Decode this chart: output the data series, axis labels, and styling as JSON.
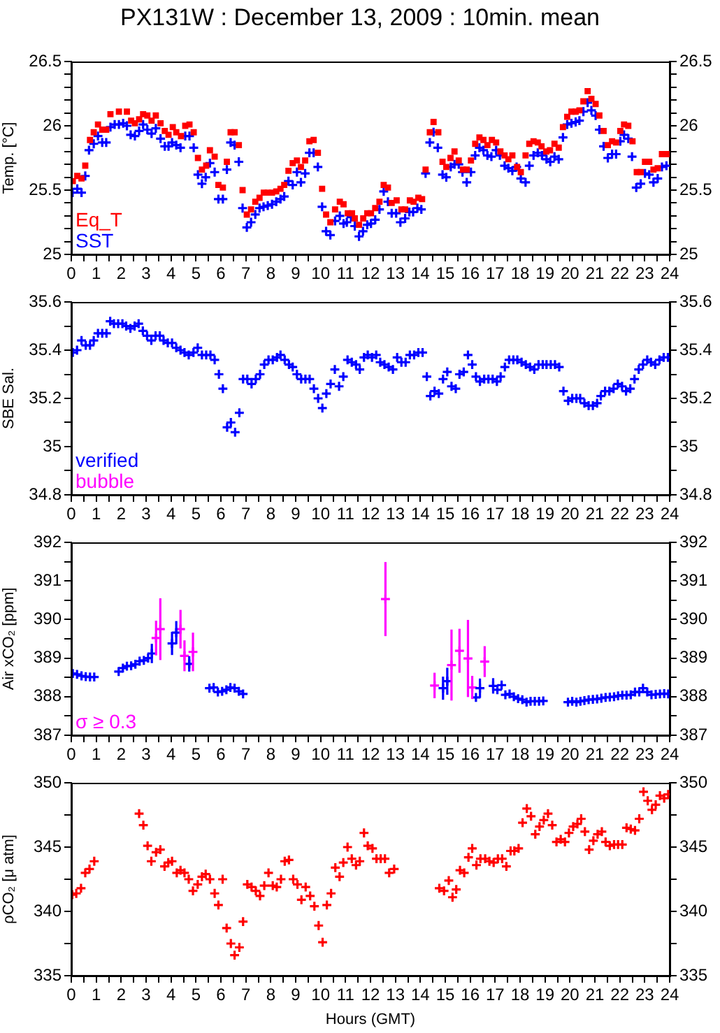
{
  "chart_data": [
    {
      "type": "scatter",
      "title": "PX131W : December 13, 2009 : 10min. mean",
      "ylabel": "Temp. [°C]",
      "marker": "cross",
      "legend": "bottom left",
      "xlim": [
        0,
        24
      ],
      "xticks": [
        0,
        {
          "value": 0.5,
          "label": null
        },
        1,
        {
          "value": 1.5,
          "label": null
        },
        2,
        {
          "value": 2.5,
          "label": null
        },
        3,
        {
          "value": 3.5,
          "label": null
        },
        4,
        {
          "value": 4.5,
          "label": null
        },
        5,
        {
          "value": 5.5,
          "label": null
        },
        6,
        {
          "value": 6.5,
          "label": null
        },
        7,
        {
          "value": 7.5,
          "label": null
        },
        8,
        {
          "value": 8.5,
          "label": null
        },
        9,
        {
          "value": 9.5,
          "label": null
        },
        10,
        {
          "value": 10.5,
          "label": null
        },
        11,
        {
          "value": 11.5,
          "label": null
        },
        12,
        {
          "value": 12.5,
          "label": null
        },
        13,
        {
          "value": 13.5,
          "label": null
        },
        14,
        {
          "value": 14.5,
          "label": null
        },
        15,
        {
          "value": 15.5,
          "label": null
        },
        16,
        {
          "value": 16.5,
          "label": null
        },
        17,
        {
          "value": 17.5,
          "label": null
        },
        18,
        {
          "value": 18.5,
          "label": null
        },
        19,
        {
          "value": 19.5,
          "label": null
        },
        20,
        {
          "value": 20.5,
          "label": null
        },
        21,
        {
          "value": 21.5,
          "label": null
        },
        22,
        {
          "value": 22.5,
          "label": null
        },
        23,
        {
          "value": 23.5,
          "label": null
        },
        24
      ],
      "ylim": [
        25,
        26.5
      ],
      "yticks": [
        25,
        {
          "value": 25.1,
          "label": null
        },
        {
          "value": 25.2,
          "label": null
        },
        {
          "value": 25.3,
          "label": null
        },
        {
          "value": 25.4,
          "label": null
        },
        25.5,
        {
          "value": 25.6,
          "label": null
        },
        {
          "value": 25.7,
          "label": null
        },
        {
          "value": 25.8,
          "label": null
        },
        {
          "value": 25.9,
          "label": null
        },
        26,
        {
          "value": 26.1,
          "label": null
        },
        {
          "value": 26.2,
          "label": null
        },
        {
          "value": 26.3,
          "label": null
        },
        {
          "value": 26.4,
          "label": null
        },
        26.5
      ],
      "y2lim": [
        25,
        26.5
      ],
      "y2ticks": [
        25,
        {
          "value": 25.1,
          "label": null
        },
        {
          "value": 25.2,
          "label": null
        },
        {
          "value": 25.3,
          "label": null
        },
        {
          "value": 25.4,
          "label": null
        },
        25.5,
        {
          "value": 25.6,
          "label": null
        },
        {
          "value": 25.7,
          "label": null
        },
        {
          "value": 25.8,
          "label": null
        },
        {
          "value": 25.9,
          "label": null
        },
        26,
        {
          "value": 26.1,
          "label": null
        },
        {
          "value": 26.2,
          "label": null
        },
        {
          "value": 26.3,
          "label": null
        },
        {
          "value": 26.4,
          "label": null
        },
        26.5
      ],
      "series": [
        {
          "name": "Eq_T",
          "color": "#ff0000",
          "marker": "square",
          "x": [
            0.06,
            0.24,
            0.41,
            0.56,
            0.75,
            0.9,
            1.07,
            1.24,
            1.4,
            1.57,
            1.91,
            2.23,
            2.4,
            2.55,
            2.72,
            2.88,
            3.05,
            3.22,
            3.39,
            3.58,
            3.75,
            3.9,
            4.07,
            4.21,
            4.4,
            4.57,
            4.74,
            4.91,
            5.08,
            5.24,
            5.41,
            5.56,
            5.75,
            5.9,
            6.08,
            6.24,
            6.39,
            6.55,
            6.72,
            6.87,
            7.04,
            7.21,
            7.38,
            7.55,
            7.72,
            7.88,
            8.05,
            8.22,
            8.39,
            8.54,
            8.71,
            8.88,
            9.05,
            9.21,
            9.38,
            9.55,
            9.72,
            9.89,
            10.06,
            10.22,
            10.39,
            10.58,
            10.77,
            10.92,
            11.09,
            11.26,
            11.37,
            11.54,
            11.71,
            11.87,
            12.02,
            12.19,
            12.36,
            12.53,
            12.7,
            12.85,
            13.05,
            13.24,
            13.39,
            13.58,
            13.73,
            13.92,
            14.07,
            14.21,
            14.38,
            14.53,
            14.72,
            14.89,
            15.04,
            15.21,
            15.37,
            15.54,
            15.71,
            15.86,
            16.03,
            16.2,
            16.37,
            16.53,
            16.69,
            16.87,
            17.04,
            17.21,
            17.38,
            17.53,
            17.69,
            17.88,
            18.03,
            18.22,
            18.37,
            18.54,
            18.71,
            18.86,
            19.05,
            19.2,
            19.38,
            19.55,
            19.72,
            19.89,
            20.06,
            20.23,
            20.38,
            20.54,
            20.71,
            20.86,
            21.03,
            21.18,
            21.35,
            21.52,
            21.69,
            21.85,
            22.02,
            22.17,
            22.34,
            22.51,
            22.68,
            22.84,
            23.01,
            23.18,
            23.35,
            23.52,
            23.69,
            23.87
          ],
          "values": [
            25.57,
            25.61,
            25.59,
            25.69,
            25.89,
            25.95,
            26.01,
            25.97,
            25.97,
            26.09,
            26.11,
            26.11,
            26.04,
            26.02,
            26.05,
            26.09,
            26.08,
            26.04,
            26.08,
            26.02,
            25.96,
            25.93,
            25.99,
            25.95,
            25.92,
            26.0,
            26.01,
            25.95,
            25.75,
            25.66,
            25.69,
            25.81,
            25.76,
            25.54,
            25.52,
            25.72,
            25.95,
            25.95,
            25.85,
            25.5,
            25.31,
            25.35,
            25.41,
            25.44,
            25.48,
            25.48,
            25.48,
            25.49,
            25.51,
            25.54,
            25.65,
            25.71,
            25.73,
            25.68,
            25.73,
            25.88,
            25.89,
            25.79,
            25.51,
            25.31,
            25.25,
            25.35,
            25.41,
            25.39,
            25.32,
            25.32,
            25.28,
            25.23,
            25.28,
            25.32,
            25.32,
            25.36,
            25.41,
            25.54,
            25.52,
            25.4,
            25.42,
            25.35,
            25.35,
            25.42,
            25.41,
            25.44,
            25.43,
            25.66,
            25.95,
            26.03,
            25.95,
            25.72,
            25.68,
            25.75,
            25.8,
            25.73,
            25.66,
            25.66,
            25.73,
            25.86,
            25.91,
            25.89,
            25.85,
            25.89,
            25.87,
            25.8,
            25.77,
            25.74,
            25.77,
            25.68,
            25.64,
            25.77,
            25.86,
            25.88,
            25.87,
            25.84,
            25.8,
            25.81,
            25.86,
            25.83,
            25.99,
            26.07,
            26.11,
            26.11,
            26.12,
            26.19,
            26.27,
            26.21,
            26.17,
            26.08,
            25.96,
            25.85,
            25.88,
            25.87,
            25.96,
            26.01,
            26.0,
            25.88,
            25.64,
            25.64,
            25.72,
            25.72,
            25.66,
            25.67,
            25.78,
            25.78
          ]
        },
        {
          "name": "SST",
          "color": "#0000ff",
          "x": [
            0.05,
            0.24,
            0.41,
            0.56,
            0.71,
            0.9,
            1.07,
            1.24,
            1.4,
            1.57,
            1.74,
            1.91,
            2.08,
            2.23,
            2.38,
            2.55,
            2.72,
            2.88,
            3.05,
            3.22,
            3.39,
            3.58,
            3.75,
            3.9,
            4.04,
            4.21,
            4.38,
            4.57,
            4.74,
            4.91,
            5.08,
            5.24,
            5.39,
            5.56,
            5.75,
            5.9,
            6.08,
            6.24,
            6.39,
            6.55,
            6.72,
            6.87,
            7.04,
            7.21,
            7.38,
            7.55,
            7.71,
            7.88,
            8.05,
            8.22,
            8.39,
            8.54,
            8.71,
            8.88,
            9.05,
            9.21,
            9.38,
            9.55,
            9.72,
            9.89,
            10.06,
            10.22,
            10.39,
            10.58,
            10.77,
            10.92,
            11.05,
            11.22,
            11.37,
            11.54,
            11.7,
            11.87,
            12.02,
            12.19,
            12.36,
            12.53,
            12.7,
            12.85,
            13.03,
            13.2,
            13.39,
            13.56,
            13.71,
            13.88,
            14.04,
            14.21,
            14.38,
            14.53,
            14.7,
            14.89,
            15.04,
            15.22,
            15.37,
            15.54,
            15.69,
            15.86,
            16.03,
            16.2,
            16.37,
            16.53,
            16.69,
            16.85,
            17.04,
            17.19,
            17.38,
            17.53,
            17.69,
            17.86,
            18.03,
            18.22,
            18.37,
            18.54,
            18.71,
            18.88,
            19.06,
            19.21,
            19.38,
            19.55,
            19.72,
            19.89,
            20.06,
            20.23,
            20.38,
            20.54,
            20.71,
            20.86,
            21.03,
            21.18,
            21.35,
            21.52,
            21.69,
            21.85,
            22.02,
            22.17,
            22.34,
            22.49,
            22.66,
            22.84,
            23.01,
            23.18,
            23.35,
            23.52,
            23.69,
            23.87
          ],
          "values": [
            25.48,
            25.51,
            25.48,
            25.61,
            25.81,
            25.86,
            25.92,
            25.87,
            25.87,
            25.99,
            26.01,
            26.01,
            26.02,
            26.0,
            25.93,
            25.92,
            25.96,
            26.01,
            25.97,
            25.94,
            25.98,
            25.9,
            25.84,
            25.84,
            25.87,
            25.85,
            25.83,
            25.92,
            25.92,
            25.83,
            25.62,
            25.55,
            25.6,
            25.71,
            25.64,
            25.43,
            25.43,
            25.66,
            25.87,
            25.85,
            25.72,
            25.36,
            25.21,
            25.25,
            25.31,
            25.36,
            25.37,
            25.38,
            25.39,
            25.41,
            25.43,
            25.45,
            25.57,
            25.54,
            25.64,
            25.56,
            25.63,
            25.79,
            25.79,
            25.68,
            25.37,
            25.18,
            25.15,
            25.26,
            25.3,
            25.24,
            25.25,
            25.29,
            25.22,
            25.14,
            25.18,
            25.23,
            25.24,
            25.27,
            25.35,
            25.49,
            25.41,
            25.32,
            25.32,
            25.25,
            25.28,
            25.33,
            25.33,
            25.36,
            25.35,
            25.63,
            25.87,
            25.95,
            25.83,
            25.62,
            25.6,
            25.68,
            25.7,
            25.7,
            25.64,
            25.56,
            25.64,
            25.77,
            25.83,
            25.81,
            25.77,
            25.76,
            25.81,
            25.77,
            25.69,
            25.67,
            25.65,
            25.68,
            25.59,
            25.56,
            25.69,
            25.77,
            25.79,
            25.77,
            25.74,
            25.72,
            25.76,
            25.74,
            25.91,
            26.01,
            26.02,
            26.03,
            26.04,
            26.11,
            26.18,
            26.12,
            26.08,
            25.97,
            25.84,
            25.75,
            25.78,
            25.78,
            25.88,
            25.93,
            25.9,
            25.76,
            25.52,
            25.55,
            25.63,
            25.62,
            25.56,
            25.59,
            25.68,
            25.69
          ]
        }
      ]
    },
    {
      "type": "scatter",
      "ylabel": "SBE Sal.",
      "marker": "cross",
      "legend": "bottom left",
      "xlim": [
        0,
        24
      ],
      "xticks": [
        0,
        {
          "value": 0.5,
          "label": null
        },
        1,
        {
          "value": 1.5,
          "label": null
        },
        2,
        {
          "value": 2.5,
          "label": null
        },
        3,
        {
          "value": 3.5,
          "label": null
        },
        4,
        {
          "value": 4.5,
          "label": null
        },
        5,
        {
          "value": 5.5,
          "label": null
        },
        6,
        {
          "value": 6.5,
          "label": null
        },
        7,
        {
          "value": 7.5,
          "label": null
        },
        8,
        {
          "value": 8.5,
          "label": null
        },
        9,
        {
          "value": 9.5,
          "label": null
        },
        10,
        {
          "value": 10.5,
          "label": null
        },
        11,
        {
          "value": 11.5,
          "label": null
        },
        12,
        {
          "value": 12.5,
          "label": null
        },
        13,
        {
          "value": 13.5,
          "label": null
        },
        14,
        {
          "value": 14.5,
          "label": null
        },
        15,
        {
          "value": 15.5,
          "label": null
        },
        16,
        {
          "value": 16.5,
          "label": null
        },
        17,
        {
          "value": 17.5,
          "label": null
        },
        18,
        {
          "value": 18.5,
          "label": null
        },
        19,
        {
          "value": 19.5,
          "label": null
        },
        20,
        {
          "value": 20.5,
          "label": null
        },
        21,
        {
          "value": 21.5,
          "label": null
        },
        22,
        {
          "value": 22.5,
          "label": null
        },
        23,
        {
          "value": 23.5,
          "label": null
        },
        24
      ],
      "ylim": [
        34.8,
        35.6
      ],
      "yticks": [
        34.8,
        {
          "value": 34.9,
          "label": null
        },
        35,
        {
          "value": 35.1,
          "label": null
        },
        35.2,
        {
          "value": 35.3,
          "label": null
        },
        35.4,
        {
          "value": 35.5,
          "label": null
        },
        35.6
      ],
      "y2lim": [
        34.8,
        35.6
      ],
      "y2ticks": [
        34.8,
        {
          "value": 34.9,
          "label": null
        },
        35,
        {
          "value": 35.1,
          "label": null
        },
        35.2,
        {
          "value": 35.3,
          "label": null
        },
        35.4,
        {
          "value": 35.5,
          "label": null
        },
        35.6
      ],
      "series": [
        {
          "name": "verified",
          "color": "#0000ff",
          "x": [
            0.06,
            0.23,
            0.41,
            0.58,
            0.75,
            0.9,
            1.07,
            1.24,
            1.41,
            1.56,
            1.71,
            1.88,
            2.05,
            2.2,
            2.37,
            2.54,
            2.7,
            2.87,
            3.04,
            3.21,
            3.38,
            3.55,
            3.7,
            3.87,
            4.04,
            4.21,
            4.38,
            4.54,
            4.71,
            4.9,
            5.07,
            5.24,
            5.41,
            5.58,
            5.75,
            5.92,
            6.08,
            6.25,
            6.4,
            6.57,
            6.74,
            6.89,
            7.06,
            7.23,
            7.4,
            7.57,
            7.74,
            7.91,
            8.08,
            8.25,
            8.39,
            8.56,
            8.73,
            8.88,
            9.05,
            9.22,
            9.39,
            9.56,
            9.73,
            9.9,
            10.07,
            10.23,
            10.4,
            10.57,
            10.74,
            10.91,
            11.08,
            11.25,
            11.42,
            11.57,
            11.74,
            11.89,
            12.06,
            12.23,
            12.39,
            12.56,
            12.73,
            12.9,
            13.07,
            13.24,
            13.41,
            13.58,
            13.75,
            13.92,
            14.09,
            14.26,
            14.4,
            14.57,
            14.74,
            14.91,
            15.08,
            15.25,
            15.42,
            15.57,
            15.74,
            15.91,
            16.08,
            16.23,
            16.39,
            16.56,
            16.73,
            16.9,
            17.07,
            17.22,
            17.39,
            17.56,
            17.73,
            17.89,
            18.06,
            18.23,
            18.4,
            18.57,
            18.74,
            18.91,
            19.06,
            19.23,
            19.4,
            19.57,
            19.74,
            19.93,
            20.09,
            20.26,
            20.41,
            20.58,
            20.75,
            20.92,
            21.09,
            21.24,
            21.41,
            21.58,
            21.75,
            21.92,
            22.09,
            22.25,
            22.42,
            22.59,
            22.76,
            22.93,
            23.1,
            23.25,
            23.42,
            23.59,
            23.76,
            23.93
          ],
          "values": [
            35.39,
            35.4,
            35.44,
            35.42,
            35.42,
            35.44,
            35.47,
            35.47,
            35.47,
            35.52,
            35.51,
            35.51,
            35.51,
            35.5,
            35.49,
            35.5,
            35.51,
            35.48,
            35.46,
            35.44,
            35.46,
            35.46,
            35.44,
            35.43,
            35.43,
            35.41,
            35.4,
            35.39,
            35.38,
            35.39,
            35.41,
            35.38,
            35.38,
            35.38,
            35.36,
            35.3,
            35.24,
            35.08,
            35.1,
            35.06,
            35.14,
            35.28,
            35.28,
            35.26,
            35.28,
            35.3,
            35.34,
            35.36,
            35.36,
            35.37,
            35.38,
            35.36,
            35.34,
            35.33,
            35.3,
            35.28,
            35.28,
            35.28,
            35.24,
            35.2,
            35.16,
            35.22,
            35.26,
            35.32,
            35.25,
            35.29,
            35.36,
            35.35,
            35.34,
            35.32,
            35.37,
            35.38,
            35.37,
            35.38,
            35.35,
            35.34,
            35.33,
            35.32,
            35.37,
            35.35,
            35.35,
            35.38,
            35.38,
            35.39,
            35.39,
            35.29,
            35.21,
            35.23,
            35.22,
            35.28,
            35.31,
            35.25,
            35.24,
            35.3,
            35.31,
            35.38,
            35.34,
            35.29,
            35.27,
            35.28,
            35.28,
            35.28,
            35.27,
            35.29,
            35.33,
            35.36,
            35.36,
            35.36,
            35.35,
            35.34,
            35.33,
            35.32,
            35.34,
            35.34,
            35.34,
            35.34,
            35.34,
            35.33,
            35.23,
            35.19,
            35.2,
            35.2,
            35.2,
            35.18,
            35.17,
            35.17,
            35.18,
            35.21,
            35.23,
            35.23,
            35.24,
            35.26,
            35.25,
            35.23,
            35.24,
            35.28,
            35.32,
            35.34,
            35.36,
            35.35,
            35.34,
            35.36,
            35.37,
            35.37
          ]
        },
        {
          "name": "bubble",
          "color": "#ff00ff"
        }
      ]
    },
    {
      "type": "scatter",
      "ylabel": "Air xCO₂ [ppm]",
      "marker": "cross",
      "legend": "bottom left",
      "xlim": [
        0,
        24
      ],
      "xticks": [
        0,
        {
          "value": 0.5,
          "label": null
        },
        1,
        {
          "value": 1.5,
          "label": null
        },
        2,
        {
          "value": 2.5,
          "label": null
        },
        3,
        {
          "value": 3.5,
          "label": null
        },
        4,
        {
          "value": 4.5,
          "label": null
        },
        5,
        {
          "value": 5.5,
          "label": null
        },
        6,
        {
          "value": 6.5,
          "label": null
        },
        7,
        {
          "value": 7.5,
          "label": null
        },
        8,
        {
          "value": 8.5,
          "label": null
        },
        9,
        {
          "value": 9.5,
          "label": null
        },
        10,
        {
          "value": 10.5,
          "label": null
        },
        11,
        {
          "value": 11.5,
          "label": null
        },
        12,
        {
          "value": 12.5,
          "label": null
        },
        13,
        {
          "value": 13.5,
          "label": null
        },
        14,
        {
          "value": 14.5,
          "label": null
        },
        15,
        {
          "value": 15.5,
          "label": null
        },
        16,
        {
          "value": 16.5,
          "label": null
        },
        17,
        {
          "value": 17.5,
          "label": null
        },
        18,
        {
          "value": 18.5,
          "label": null
        },
        19,
        {
          "value": 19.5,
          "label": null
        },
        20,
        {
          "value": 20.5,
          "label": null
        },
        21,
        {
          "value": 21.5,
          "label": null
        },
        22,
        {
          "value": 22.5,
          "label": null
        },
        23,
        {
          "value": 23.5,
          "label": null
        },
        24
      ],
      "ylim": [
        387,
        392
      ],
      "yticks": [
        387,
        {
          "value": 387.5,
          "label": null
        },
        388,
        {
          "value": 388.5,
          "label": null
        },
        389,
        {
          "value": 389.5,
          "label": null
        },
        390,
        {
          "value": 390.5,
          "label": null
        },
        391,
        {
          "value": 391.5,
          "label": null
        },
        392
      ],
      "y2lim": [
        387,
        392
      ],
      "y2ticks": [
        387,
        {
          "value": 387.5,
          "label": null
        },
        388,
        {
          "value": 388.5,
          "label": null
        },
        389,
        {
          "value": 389.5,
          "label": null
        },
        390,
        {
          "value": 390.5,
          "label": null
        },
        391,
        {
          "value": 391.5,
          "label": null
        },
        392
      ],
      "series": [
        {
          "color": "#0000ff",
          "x": [
            0.06,
            0.23,
            0.41,
            0.58,
            0.75,
            0.92,
            1.9,
            2.07,
            2.23,
            2.4,
            2.57,
            2.74,
            2.91,
            3.08,
            3.23,
            4.04,
            4.21,
            4.73,
            5.54,
            5.71,
            5.88,
            6.05,
            6.22,
            6.38,
            6.55,
            6.72,
            6.89,
            14.91,
            15.08,
            16.23,
            16.39,
            16.92,
            17.09,
            17.26,
            17.41,
            17.58,
            17.75,
            17.92,
            18.09,
            18.26,
            18.42,
            18.59,
            18.76,
            18.93,
            19.92,
            20.09,
            20.26,
            20.42,
            20.58,
            20.75,
            20.92,
            21.09,
            21.26,
            21.43,
            21.6,
            21.77,
            21.93,
            22.1,
            22.27,
            22.44,
            22.61,
            22.78,
            22.93,
            23.1,
            23.27,
            23.44,
            23.61,
            23.78,
            23.94
          ],
          "values": [
            388.6,
            388.58,
            388.54,
            388.52,
            388.51,
            388.51,
            388.65,
            388.74,
            388.79,
            388.8,
            388.84,
            388.92,
            388.94,
            389.0,
            389.12,
            389.38,
            389.66,
            388.85,
            388.22,
            388.24,
            388.12,
            388.14,
            388.18,
            388.24,
            388.22,
            388.14,
            388.07,
            388.22,
            388.4,
            387.98,
            388.22,
            388.28,
            388.18,
            388.3,
            388.05,
            388.07,
            388.0,
            387.95,
            387.92,
            387.86,
            387.88,
            387.88,
            387.88,
            387.89,
            387.86,
            387.88,
            387.86,
            387.88,
            387.9,
            387.92,
            387.93,
            387.94,
            387.96,
            387.98,
            387.99,
            388.0,
            388.02,
            388.04,
            388.04,
            388.05,
            388.12,
            388.12,
            388.22,
            388.12,
            388.05,
            388.06,
            388.07,
            388.08,
            388.07
          ],
          "errors": [
            null,
            null,
            null,
            null,
            null,
            null,
            null,
            null,
            null,
            null,
            null,
            null,
            null,
            null,
            0.25,
            0.3,
            0.3,
            0.2,
            null,
            null,
            null,
            null,
            null,
            null,
            null,
            null,
            null,
            0.3,
            0.35,
            null,
            0.25,
            0.2,
            null,
            null,
            null,
            null,
            null,
            null,
            null,
            null,
            null,
            null,
            null,
            null,
            null,
            null,
            null,
            null,
            null,
            null,
            null,
            null,
            null,
            null,
            null,
            null,
            null,
            null,
            null,
            null,
            null,
            null,
            null,
            null,
            null,
            null,
            null,
            null,
            null
          ]
        },
        {
          "name": "σ ≥ 0.3",
          "color": "#ff00ff",
          "x": [
            3.4,
            3.57,
            4.38,
            4.54,
            4.88,
            12.6,
            14.57,
            15.25,
            15.57,
            15.91,
            16.08,
            16.58
          ],
          "values": [
            389.52,
            389.75,
            389.75,
            389.06,
            389.16,
            390.53,
            388.29,
            388.82,
            389.19,
            388.99,
            388.24,
            388.91
          ],
          "errors": [
            0.45,
            0.8,
            0.5,
            0.4,
            0.5,
            0.96,
            0.33,
            0.92,
            0.57,
            1.0,
            0.3,
            0.4
          ]
        }
      ]
    },
    {
      "type": "scatter",
      "ylabel": "ρCO₂ [μ atm]",
      "xlabel": "Hours (GMT)",
      "marker": "cross",
      "xlim": [
        0,
        24
      ],
      "xticks": [
        0,
        {
          "value": 0.5,
          "label": null
        },
        1,
        {
          "value": 1.5,
          "label": null
        },
        2,
        {
          "value": 2.5,
          "label": null
        },
        3,
        {
          "value": 3.5,
          "label": null
        },
        4,
        {
          "value": 4.5,
          "label": null
        },
        5,
        {
          "value": 5.5,
          "label": null
        },
        6,
        {
          "value": 6.5,
          "label": null
        },
        7,
        {
          "value": 7.5,
          "label": null
        },
        8,
        {
          "value": 8.5,
          "label": null
        },
        9,
        {
          "value": 9.5,
          "label": null
        },
        10,
        {
          "value": 10.5,
          "label": null
        },
        11,
        {
          "value": 11.5,
          "label": null
        },
        12,
        {
          "value": 12.5,
          "label": null
        },
        13,
        {
          "value": 13.5,
          "label": null
        },
        14,
        {
          "value": 14.5,
          "label": null
        },
        15,
        {
          "value": 15.5,
          "label": null
        },
        16,
        {
          "value": 16.5,
          "label": null
        },
        17,
        {
          "value": 17.5,
          "label": null
        },
        18,
        {
          "value": 18.5,
          "label": null
        },
        19,
        {
          "value": 19.5,
          "label": null
        },
        20,
        {
          "value": 20.5,
          "label": null
        },
        21,
        {
          "value": 21.5,
          "label": null
        },
        22,
        {
          "value": 22.5,
          "label": null
        },
        23,
        {
          "value": 23.5,
          "label": null
        },
        24
      ],
      "ylim": [
        335,
        350
      ],
      "yticks": [
        335,
        {
          "value": 337.5,
          "label": null
        },
        340,
        {
          "value": 342.5,
          "label": null
        },
        345,
        {
          "value": 347.5,
          "label": null
        },
        350
      ],
      "y2lim": [
        335,
        350
      ],
      "y2ticks": [
        335,
        {
          "value": 337.5,
          "label": null
        },
        340,
        {
          "value": 342.5,
          "label": null
        },
        345,
        {
          "value": 347.5,
          "label": null
        },
        350
      ],
      "series": [
        {
          "color": "#ff0000",
          "x": [
            0.04,
            0.2,
            0.39,
            0.56,
            0.73,
            0.92,
            2.72,
            2.89,
            3.06,
            3.21,
            3.4,
            3.57,
            3.74,
            3.89,
            4.04,
            4.23,
            4.38,
            4.54,
            4.71,
            4.88,
            5.07,
            5.24,
            5.39,
            5.56,
            5.75,
            5.9,
            6.07,
            6.23,
            6.4,
            6.55,
            6.74,
            6.89,
            7.06,
            7.23,
            7.4,
            7.57,
            7.74,
            7.91,
            8.08,
            8.24,
            8.41,
            8.56,
            8.73,
            8.9,
            9.07,
            9.23,
            9.4,
            9.58,
            9.75,
            9.92,
            10.08,
            10.25,
            10.42,
            10.59,
            10.76,
            10.91,
            11.08,
            11.25,
            11.42,
            11.57,
            11.74,
            11.89,
            12.08,
            12.24,
            12.41,
            12.58,
            12.75,
            12.95,
            14.76,
            14.95,
            15.14,
            15.29,
            15.44,
            15.59,
            15.76,
            15.93,
            16.08,
            16.25,
            16.41,
            16.6,
            16.77,
            16.94,
            17.11,
            17.28,
            17.45,
            17.62,
            17.77,
            17.94,
            18.1,
            18.27,
            18.44,
            18.61,
            18.78,
            18.95,
            19.12,
            19.29,
            19.46,
            19.63,
            19.8,
            19.96,
            20.13,
            20.3,
            20.45,
            20.6,
            20.77,
            20.94,
            21.11,
            21.28,
            21.43,
            21.6,
            21.77,
            21.93,
            22.1,
            22.27,
            22.44,
            22.61,
            22.78,
            22.95,
            23.12,
            23.29,
            23.44,
            23.61,
            23.78,
            23.94
          ],
          "values": [
            341.3,
            341.4,
            341.8,
            343.0,
            343.3,
            343.9,
            347.6,
            346.7,
            345.1,
            343.9,
            344.6,
            344.8,
            343.5,
            343.8,
            343.9,
            343.0,
            343.2,
            343.0,
            342.5,
            341.6,
            342.1,
            342.7,
            342.9,
            342.5,
            341.4,
            340.5,
            342.5,
            338.7,
            337.5,
            336.6,
            337.2,
            339.2,
            342.1,
            341.9,
            341.6,
            341.2,
            342.0,
            343.0,
            342.0,
            341.9,
            342.5,
            343.9,
            344.0,
            342.5,
            342.1,
            340.9,
            341.9,
            341.2,
            340.4,
            338.9,
            337.6,
            340.5,
            341.4,
            343.4,
            342.7,
            343.8,
            345.0,
            344.1,
            343.6,
            343.9,
            346.1,
            345.1,
            344.9,
            344.1,
            344.1,
            344.1,
            343.0,
            343.3,
            341.8,
            341.6,
            342.4,
            341.1,
            341.7,
            343.2,
            343.0,
            344.2,
            344.9,
            343.6,
            344.1,
            344.1,
            343.9,
            343.8,
            344.1,
            344.1,
            343.5,
            344.7,
            344.7,
            344.9,
            346.9,
            348.0,
            347.4,
            346.0,
            346.6,
            347.1,
            347.6,
            346.7,
            345.4,
            345.6,
            345.4,
            346.1,
            346.6,
            346.8,
            347.2,
            346.2,
            344.8,
            345.5,
            346.0,
            346.2,
            345.4,
            345.1,
            345.2,
            345.2,
            345.2,
            346.5,
            346.4,
            346.3,
            347.2,
            349.3,
            348.6,
            347.9,
            348.3,
            349.0,
            348.8,
            349.1
          ]
        }
      ]
    }
  ]
}
